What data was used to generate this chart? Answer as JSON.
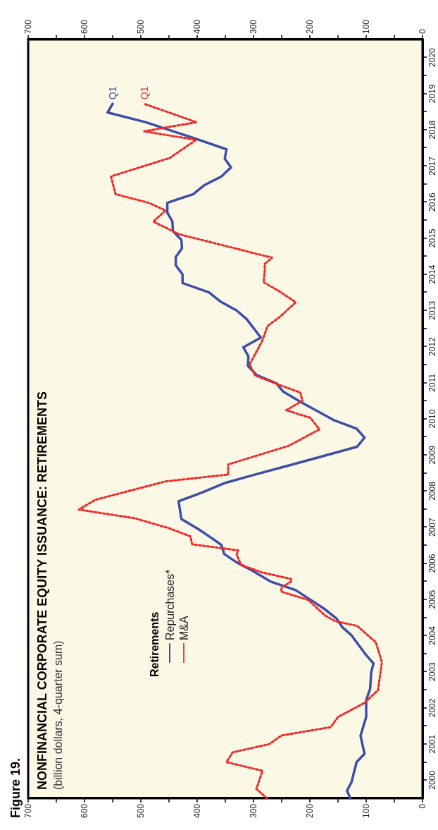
{
  "chart_data": {
    "type": "line",
    "title": "NONFINANCIAL CORPORATE EQUITY ISSUANCE: RETIREMENTS",
    "subtitle": "(billion dollars, 4-quarter sum)",
    "legend_title": "Retirements",
    "annotations": [
      "Figure 19.",
      {
        "text": "Q1",
        "x": 550,
        "y": 2019.22
      },
      {
        "text": "Q1",
        "x": 494,
        "y": 2019.22
      }
    ],
    "ylim": [
      2000,
      2021
    ],
    "yticks": [
      {
        "value": 2000.5,
        "label": "2000"
      },
      {
        "value": 2001,
        "label": null
      },
      {
        "value": 2001.5,
        "label": "2001"
      },
      {
        "value": 2002,
        "label": null
      },
      {
        "value": 2002.5,
        "label": "2002"
      },
      {
        "value": 2003,
        "label": null
      },
      {
        "value": 2003.5,
        "label": "2003"
      },
      {
        "value": 2004,
        "label": null
      },
      {
        "value": 2004.5,
        "label": "2004"
      },
      {
        "value": 2005,
        "label": null
      },
      {
        "value": 2005.5,
        "label": "2005"
      },
      {
        "value": 2006,
        "label": null
      },
      {
        "value": 2006.5,
        "label": "2006"
      },
      {
        "value": 2007,
        "label": null
      },
      {
        "value": 2007.5,
        "label": "2007"
      },
      {
        "value": 2008,
        "label": null
      },
      {
        "value": 2008.5,
        "label": "2008"
      },
      {
        "value": 2009,
        "label": null
      },
      {
        "value": 2009.5,
        "label": "2009"
      },
      {
        "value": 2010,
        "label": null
      },
      {
        "value": 2010.5,
        "label": "2010"
      },
      {
        "value": 2011,
        "label": null
      },
      {
        "value": 2011.5,
        "label": "2011"
      },
      {
        "value": 2012,
        "label": null
      },
      {
        "value": 2012.5,
        "label": "2012"
      },
      {
        "value": 2013,
        "label": null
      },
      {
        "value": 2013.5,
        "label": "2013"
      },
      {
        "value": 2014,
        "label": null
      },
      {
        "value": 2014.5,
        "label": "2014"
      },
      {
        "value": 2015,
        "label": null
      },
      {
        "value": 2015.5,
        "label": "2015"
      },
      {
        "value": 2016,
        "label": null
      },
      {
        "value": 2016.5,
        "label": "2016"
      },
      {
        "value": 2017,
        "label": null
      },
      {
        "value": 2017.5,
        "label": "2017"
      },
      {
        "value": 2018,
        "label": null
      },
      {
        "value": 2018.5,
        "label": "2018"
      },
      {
        "value": 2019,
        "label": null
      },
      {
        "value": 2019.5,
        "label": "2019"
      },
      {
        "value": 2020,
        "label": null
      },
      {
        "value": 2020.5,
        "label": "2020"
      }
    ],
    "xlim": [
      700,
      0
    ],
    "xticks": [
      0,
      {
        "value": 50,
        "label": null
      },
      100,
      {
        "value": 150,
        "label": null
      },
      200,
      {
        "value": 250,
        "label": null
      },
      300,
      {
        "value": 350,
        "label": null
      },
      400,
      {
        "value": 450,
        "label": null
      },
      500,
      {
        "value": 550,
        "label": null
      },
      600,
      {
        "value": 650,
        "label": null
      },
      700
    ],
    "x2lim": [
      700,
      0
    ],
    "x2ticks": [
      0,
      {
        "value": 50,
        "label": null
      },
      100,
      {
        "value": 150,
        "label": null
      },
      200,
      {
        "value": 250,
        "label": null
      },
      300,
      {
        "value": 350,
        "label": null
      },
      400,
      {
        "value": 450,
        "label": null
      },
      500,
      {
        "value": 550,
        "label": null
      },
      600,
      {
        "value": 650,
        "label": null
      },
      700
    ],
    "grid": false,
    "legend": "bottom left",
    "marker": "none",
    "series": [
      {
        "name": "Repurchases*",
        "color": "#3d4ea8",
        "line_style": "solid",
        "values": [
          2000.0,
          2000.21,
          2000.45,
          2001.0,
          2001.23,
          2001.73,
          2002.25,
          2002.71,
          2003.03,
          2003.5,
          2003.73,
          2004.0,
          2004.51,
          2004.73,
          2004.98,
          2005.25,
          2005.76,
          2006.0,
          2006.3,
          2006.53,
          2006.76,
          2007.01,
          2007.2,
          2007.44,
          2007.73,
          2008.22,
          2008.46,
          2008.73,
          2008.96,
          2009.24,
          2009.73,
          2009.98,
          2010.23,
          2010.47,
          2010.94,
          2011.25,
          2011.48,
          2011.72,
          2011.97,
          2012.23,
          2012.48,
          2012.75,
          2013.26,
          2013.5,
          2013.75,
          2014.0,
          2014.26,
          2014.5,
          2014.75,
          2014.98,
          2015.22,
          2015.45,
          2015.7,
          2015.96,
          2016.21,
          2016.48,
          2016.72,
          2016.97,
          2017.21,
          2017.46,
          2017.7,
          2017.96,
          2018.25,
          2018.71,
          2018.98,
          2019.22
        ],
        "x": [
          128,
          134,
          126,
          117,
          103,
          110,
          100,
          100,
          93,
          91,
          87,
          102,
          126,
          142,
          153,
          175,
          225,
          270,
          302,
          330,
          352,
          357,
          374,
          397,
          428,
          433,
          392,
          350,
          297,
          230,
          116,
          103,
          117,
          158,
          213,
          247,
          259,
          295,
          310,
          309,
          318,
          287,
          312,
          330,
          359,
          379,
          426,
          426,
          438,
          438,
          427,
          428,
          443,
          444,
          453,
          453,
          407,
          387,
          357,
          340,
          351,
          348,
          402,
          491,
          559,
          550
        ]
      },
      {
        "name": "M&A",
        "color": "#ee2a2a",
        "line_style": "dotted",
        "values": [
          2000.0,
          2000.26,
          2000.76,
          2001.0,
          2001.27,
          2001.5,
          2001.74,
          2001.97,
          2002.25,
          2002.64,
          2002.99,
          2003.77,
          2004.32,
          2004.77,
          2004.9,
          2005.06,
          2005.49,
          2005.72,
          2005.84,
          2006.0,
          2006.07,
          2006.25,
          2006.46,
          2006.74,
          2006.86,
          2007.03,
          2007.25,
          2007.48,
          2007.75,
          2007.99,
          2008.26,
          2008.77,
          2008.96,
          2009.24,
          2009.75,
          2010.21,
          2010.53,
          2010.74,
          2011.0,
          2011.23,
          2011.43,
          2011.7,
          2012.01,
          2012.64,
          2013.07,
          2013.34,
          2013.73,
          2014.04,
          2014.28,
          2014.63,
          2014.79,
          2014.96,
          2015.61,
          2015.84,
          2015.96,
          2016.27,
          2016.48,
          2016.72,
          2017.21,
          2017.72,
          2018.22,
          2018.46,
          2018.71,
          2019.22
        ],
        "x": [
          276,
          295,
          284,
          348,
          337,
          272,
          250,
          163,
          150,
          103,
          79,
          72,
          83,
          116,
          155,
          173,
          203,
          251,
          250,
          233,
          233,
          285,
          322,
          330,
          327,
          409,
          412,
          451,
          511,
          610,
          581,
          456,
          345,
          345,
          238,
          183,
          199,
          242,
          213,
          217,
          252,
          297,
          307,
          285,
          275,
          252,
          225,
          255,
          282,
          280,
          280,
          267,
          432,
          462,
          478,
          456,
          486,
          545,
          553,
          449,
          402,
          494,
          401,
          494
        ]
      }
    ]
  }
}
